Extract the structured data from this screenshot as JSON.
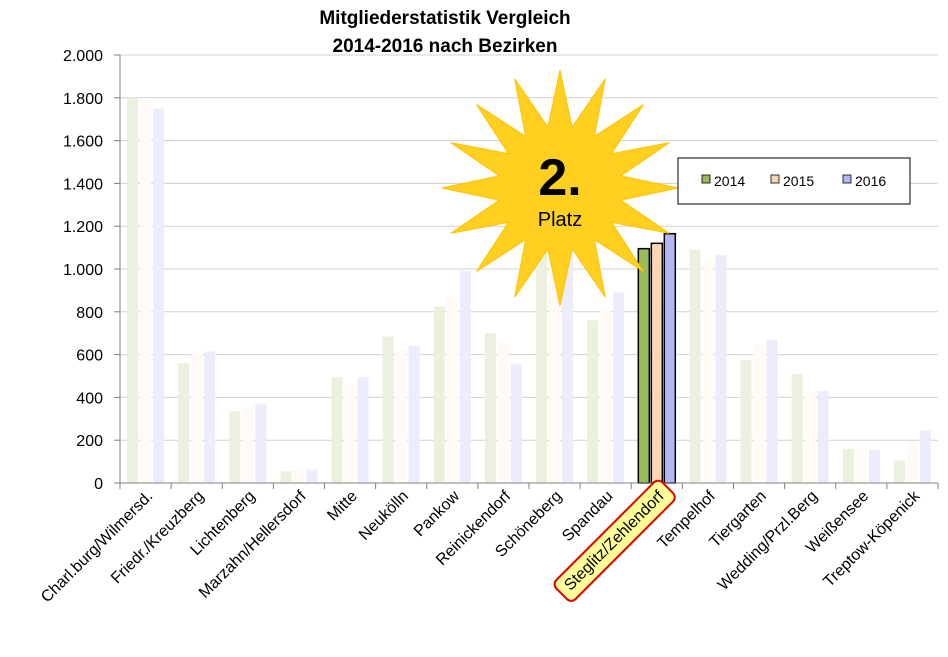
{
  "chart_data": {
    "type": "bar",
    "title_line1": "Mitgliederstatistik Vergleich",
    "title_line2": "2014-2016 nach Bezirken",
    "xlabel": "",
    "ylabel": "",
    "ylim": [
      0,
      2000
    ],
    "yticks": [
      0,
      200,
      400,
      600,
      800,
      1000,
      1200,
      1400,
      1600,
      1800,
      2000
    ],
    "ytick_labels": [
      "0",
      "200",
      "400",
      "600",
      "800",
      "1.000",
      "1.200",
      "1.400",
      "1.600",
      "1.800",
      "2.000"
    ],
    "grid": true,
    "legend_position": "top-right",
    "categories": [
      "Charl.burg/Wilmersd.",
      "Friedr./Kreuzberg",
      "Lichtenberg",
      "Marzahn/Hellersdorf",
      "Mitte",
      "Neukölln",
      "Pankow",
      "Reinickendorf",
      "Schöneberg",
      "Spandau",
      "Steglitz/Zehlendorf",
      "Tempelhof",
      "Tiergarten",
      "Wedding/Przl.Berg",
      "Weißensee",
      "Treptow-Köpenick"
    ],
    "highlight_category": "Steglitz/Zehlendorf",
    "series": [
      {
        "name": "2014",
        "color": "#9bbb59",
        "faded_color": "#ebf1de",
        "values": [
          1800,
          560,
          335,
          55,
          495,
          685,
          825,
          700,
          1130,
          760,
          1095,
          1090,
          575,
          510,
          160,
          105
        ]
      },
      {
        "name": "2015",
        "color": "#fcd5b4",
        "faded_color": "#fffaf5",
        "values": [
          1790,
          605,
          355,
          60,
          460,
          625,
          875,
          660,
          1075,
          805,
          1120,
          1045,
          645,
          425,
          160,
          190
        ]
      },
      {
        "name": "2016",
        "color": "#b4b7f5",
        "faded_color": "#ececfc",
        "values": [
          1750,
          615,
          370,
          62,
          495,
          640,
          990,
          555,
          1080,
          890,
          1165,
          1065,
          670,
          430,
          155,
          245
        ]
      }
    ]
  },
  "badge": {
    "number": "2.",
    "label": "Platz"
  }
}
